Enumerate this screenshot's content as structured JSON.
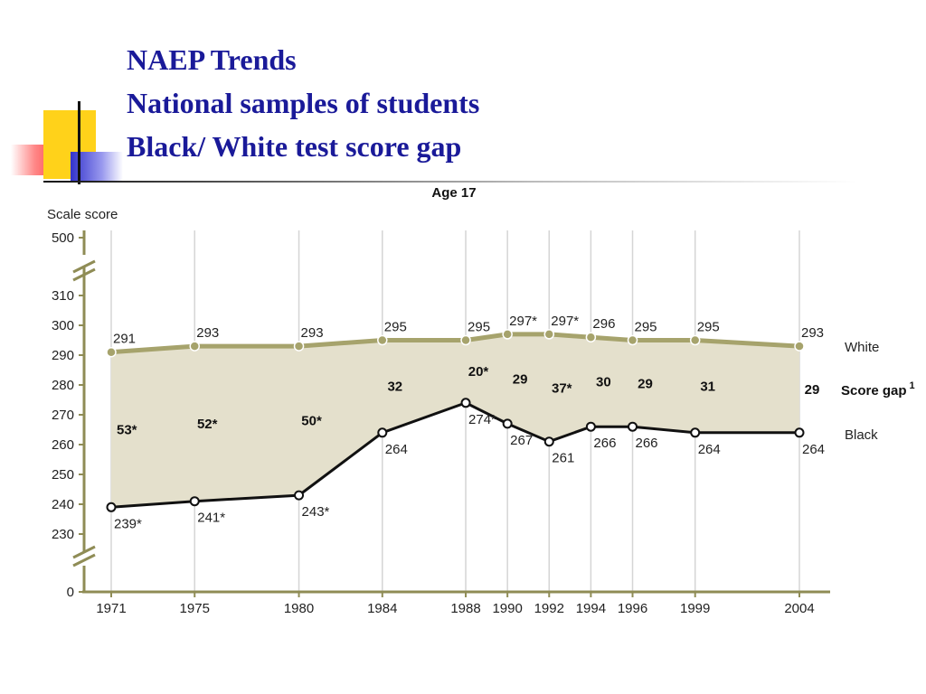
{
  "slide": {
    "title_lines": [
      "NAEP Trends",
      "National samples of students",
      "Black/ White test score gap"
    ]
  },
  "colors": {
    "title": "#1a1a99",
    "white_series": "#a6a36c",
    "black_series": "#111111",
    "fill": "#e4e0cc",
    "axis": "#8f8c55",
    "grid": "#d5d5d5"
  },
  "chart_data": {
    "type": "line",
    "title": "Age 17",
    "ylabel": "Scale score",
    "x": [
      1971,
      1975,
      1980,
      1984,
      1988,
      1990,
      1992,
      1994,
      1996,
      1999,
      2004
    ],
    "x_tick_labels": [
      "1971",
      "1975",
      "1980",
      "1984",
      "1988",
      "1990",
      "1992",
      "1994",
      "1996",
      "1999",
      "2004"
    ],
    "y_ticks": [
      0,
      230,
      240,
      250,
      260,
      270,
      280,
      290,
      300,
      310,
      500
    ],
    "y_tick_labels": [
      "0",
      "230",
      "240",
      "250",
      "260",
      "270",
      "280",
      "290",
      "300",
      "310",
      "500"
    ],
    "ylim_main": [
      230,
      310
    ],
    "axis_breaks": [
      "between 310 and 500",
      "between 0 and 230"
    ],
    "grid": "vertical lines at each year",
    "series": [
      {
        "name": "White",
        "values": [
          291,
          293,
          293,
          295,
          295,
          297,
          297,
          296,
          295,
          295,
          293
        ],
        "labels": [
          "291",
          "293",
          "293",
          "295",
          "295",
          "297*",
          "297*",
          "296",
          "295",
          "295",
          "293"
        ],
        "marker": "filled circle",
        "color": "#a6a36c"
      },
      {
        "name": "Black",
        "values": [
          239,
          241,
          243,
          264,
          274,
          267,
          261,
          266,
          266,
          264,
          264
        ],
        "labels": [
          "239*",
          "241*",
          "243*",
          "264",
          "274*",
          "267",
          "261",
          "266",
          "266",
          "264",
          "264"
        ],
        "marker": "open circle",
        "color": "#111111"
      }
    ],
    "score_gap": {
      "name": "Score gap",
      "footnote_marker": "1",
      "values": [
        53,
        52,
        50,
        32,
        20,
        29,
        37,
        30,
        29,
        31,
        29
      ],
      "labels": [
        "53*",
        "52*",
        "50*",
        "32",
        "20*",
        "29",
        "37*",
        "30",
        "29",
        "31",
        "29"
      ]
    }
  }
}
